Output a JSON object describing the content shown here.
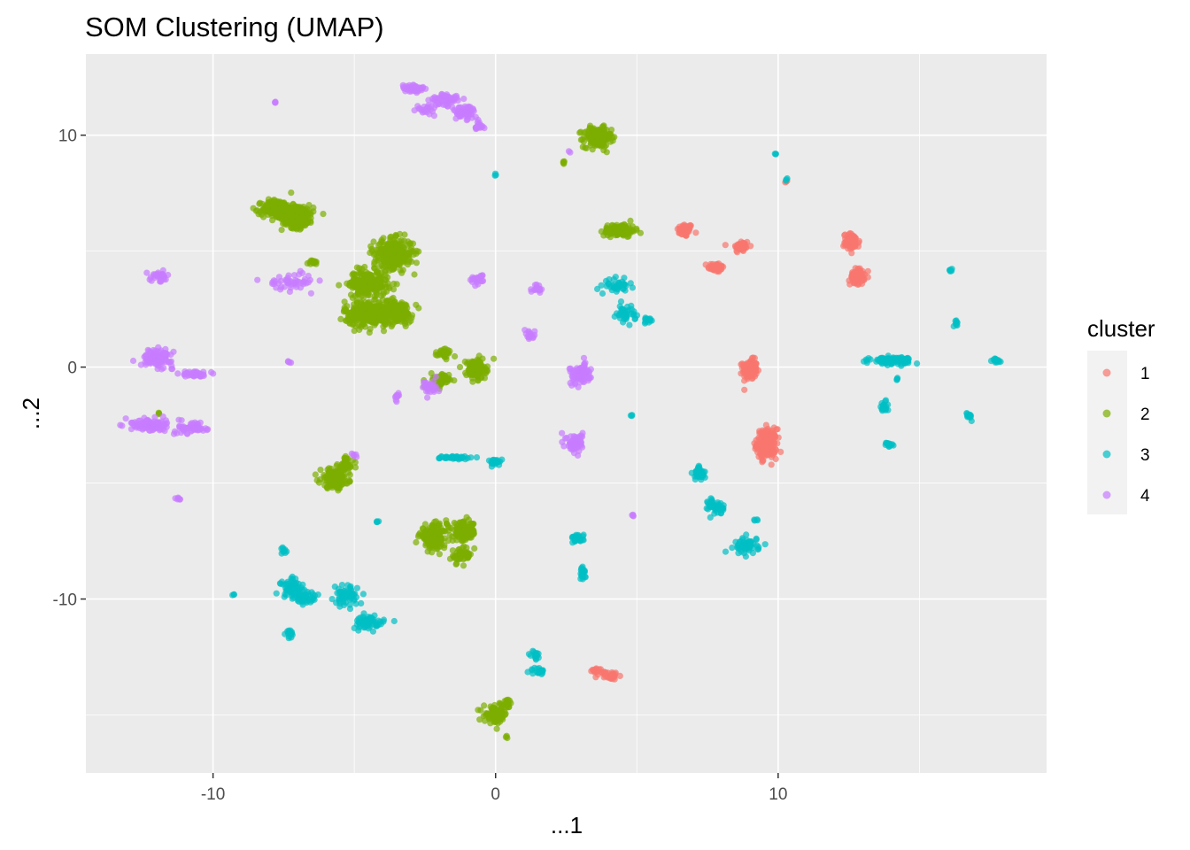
{
  "chart_data": {
    "type": "scatter",
    "title": "SOM Clustering (UMAP)",
    "xlabel": "...1",
    "ylabel": "...2",
    "xlim": [
      -14.5,
      19.5
    ],
    "ylim": [
      -17.5,
      13.5
    ],
    "x_ticks": [
      -10,
      0,
      10
    ],
    "y_ticks": [
      -10,
      0,
      10
    ],
    "grid": true,
    "legend_position": "right",
    "legend_title": "cluster",
    "series": [
      {
        "name": "1",
        "color": "#F8766D",
        "clusters": [
          {
            "x": 6.7,
            "y": 5.9,
            "sx": 0.2,
            "sy": 0.2,
            "n": 50
          },
          {
            "x": 7.8,
            "y": 4.3,
            "sx": 0.2,
            "sy": 0.15,
            "n": 45
          },
          {
            "x": 8.7,
            "y": 5.2,
            "sx": 0.2,
            "sy": 0.2,
            "n": 45
          },
          {
            "x": 9.0,
            "y": -0.1,
            "sx": 0.18,
            "sy": 0.3,
            "n": 120
          },
          {
            "x": 9.6,
            "y": -3.3,
            "sx": 0.25,
            "sy": 0.45,
            "n": 200
          },
          {
            "x": 12.6,
            "y": 5.4,
            "sx": 0.2,
            "sy": 0.25,
            "n": 80
          },
          {
            "x": 12.8,
            "y": 3.9,
            "sx": 0.18,
            "sy": 0.25,
            "n": 70
          },
          {
            "x": 3.6,
            "y": -13.1,
            "sx": 0.15,
            "sy": 0.1,
            "n": 20
          },
          {
            "x": 4.1,
            "y": -13.3,
            "sx": 0.15,
            "sy": 0.12,
            "n": 30
          },
          {
            "x": 10.3,
            "y": 8.0,
            "sx": 0.05,
            "sy": 0.05,
            "n": 3
          }
        ]
      },
      {
        "name": "2",
        "color": "#7CAE00",
        "clusters": [
          {
            "x": 3.6,
            "y": 9.9,
            "sx": 0.35,
            "sy": 0.3,
            "n": 200
          },
          {
            "x": 2.4,
            "y": 8.8,
            "sx": 0.05,
            "sy": 0.05,
            "n": 5
          },
          {
            "x": -7.7,
            "y": 6.8,
            "sx": 0.4,
            "sy": 0.3,
            "n": 180
          },
          {
            "x": -7.0,
            "y": 6.5,
            "sx": 0.4,
            "sy": 0.35,
            "n": 200
          },
          {
            "x": -3.6,
            "y": 4.9,
            "sx": 0.5,
            "sy": 0.45,
            "n": 280
          },
          {
            "x": -4.5,
            "y": 3.6,
            "sx": 0.5,
            "sy": 0.4,
            "n": 220
          },
          {
            "x": -4.5,
            "y": 2.3,
            "sx": 0.6,
            "sy": 0.4,
            "n": 280
          },
          {
            "x": -3.5,
            "y": 2.4,
            "sx": 0.4,
            "sy": 0.35,
            "n": 150
          },
          {
            "x": 4.4,
            "y": 5.9,
            "sx": 0.4,
            "sy": 0.2,
            "n": 120
          },
          {
            "x": -0.7,
            "y": -0.1,
            "sx": 0.25,
            "sy": 0.3,
            "n": 130
          },
          {
            "x": -1.8,
            "y": 0.6,
            "sx": 0.2,
            "sy": 0.15,
            "n": 30
          },
          {
            "x": -2.0,
            "y": -0.6,
            "sx": 0.25,
            "sy": 0.2,
            "n": 70
          },
          {
            "x": -5.7,
            "y": -4.8,
            "sx": 0.35,
            "sy": 0.3,
            "n": 150
          },
          {
            "x": -5.3,
            "y": -4.2,
            "sx": 0.2,
            "sy": 0.25,
            "n": 40
          },
          {
            "x": -2.2,
            "y": -7.3,
            "sx": 0.35,
            "sy": 0.35,
            "n": 160
          },
          {
            "x": -1.1,
            "y": -7.1,
            "sx": 0.3,
            "sy": 0.3,
            "n": 130
          },
          {
            "x": -1.2,
            "y": -8.1,
            "sx": 0.25,
            "sy": 0.25,
            "n": 50
          },
          {
            "x": 0.0,
            "y": -15.0,
            "sx": 0.3,
            "sy": 0.25,
            "n": 80
          },
          {
            "x": 0.4,
            "y": -14.5,
            "sx": 0.15,
            "sy": 0.15,
            "n": 20
          },
          {
            "x": 0.4,
            "y": -15.9,
            "sx": 0.05,
            "sy": 0.05,
            "n": 3
          },
          {
            "x": -6.5,
            "y": 4.5,
            "sx": 0.15,
            "sy": 0.1,
            "n": 15
          },
          {
            "x": -11.9,
            "y": -2.0,
            "sx": 0.05,
            "sy": 0.05,
            "n": 3
          }
        ]
      },
      {
        "name": "3",
        "color": "#00BFC4",
        "clusters": [
          {
            "x": 0.0,
            "y": 8.3,
            "sx": 0.03,
            "sy": 0.03,
            "n": 3
          },
          {
            "x": 9.9,
            "y": 9.2,
            "sx": 0.03,
            "sy": 0.03,
            "n": 3
          },
          {
            "x": 10.3,
            "y": 8.1,
            "sx": 0.05,
            "sy": 0.05,
            "n": 3
          },
          {
            "x": 4.3,
            "y": 3.5,
            "sx": 0.3,
            "sy": 0.2,
            "n": 40
          },
          {
            "x": 4.6,
            "y": 2.3,
            "sx": 0.25,
            "sy": 0.25,
            "n": 40
          },
          {
            "x": 5.4,
            "y": 2.0,
            "sx": 0.1,
            "sy": 0.1,
            "n": 15
          },
          {
            "x": 14.0,
            "y": 0.3,
            "sx": 0.5,
            "sy": 0.1,
            "n": 120
          },
          {
            "x": 16.1,
            "y": 4.2,
            "sx": 0.05,
            "sy": 0.05,
            "n": 6
          },
          {
            "x": 16.3,
            "y": 1.9,
            "sx": 0.05,
            "sy": 0.08,
            "n": 8
          },
          {
            "x": 17.7,
            "y": 0.3,
            "sx": 0.12,
            "sy": 0.08,
            "n": 15
          },
          {
            "x": 14.2,
            "y": -0.5,
            "sx": 0.05,
            "sy": 0.05,
            "n": 4
          },
          {
            "x": 13.7,
            "y": -1.7,
            "sx": 0.15,
            "sy": 0.2,
            "n": 20
          },
          {
            "x": 16.8,
            "y": -2.1,
            "sx": 0.1,
            "sy": 0.1,
            "n": 12
          },
          {
            "x": 13.9,
            "y": -3.3,
            "sx": 0.1,
            "sy": 0.1,
            "n": 15
          },
          {
            "x": 4.8,
            "y": -2.1,
            "sx": 0.03,
            "sy": 0.03,
            "n": 3
          },
          {
            "x": -1.4,
            "y": -3.9,
            "sx": 0.4,
            "sy": 0.05,
            "n": 40
          },
          {
            "x": 0.0,
            "y": -4.1,
            "sx": 0.15,
            "sy": 0.1,
            "n": 25
          },
          {
            "x": 7.2,
            "y": -4.6,
            "sx": 0.15,
            "sy": 0.2,
            "n": 40
          },
          {
            "x": 7.8,
            "y": -6.0,
            "sx": 0.2,
            "sy": 0.25,
            "n": 50
          },
          {
            "x": 9.2,
            "y": -6.6,
            "sx": 0.05,
            "sy": 0.05,
            "n": 4
          },
          {
            "x": 8.9,
            "y": -7.7,
            "sx": 0.3,
            "sy": 0.25,
            "n": 60
          },
          {
            "x": 2.9,
            "y": -7.4,
            "sx": 0.15,
            "sy": 0.15,
            "n": 25
          },
          {
            "x": 3.1,
            "y": -8.9,
            "sx": 0.1,
            "sy": 0.2,
            "n": 20
          },
          {
            "x": -4.2,
            "y": -6.7,
            "sx": 0.05,
            "sy": 0.05,
            "n": 4
          },
          {
            "x": -7.5,
            "y": -7.9,
            "sx": 0.1,
            "sy": 0.1,
            "n": 10
          },
          {
            "x": -7.2,
            "y": -9.5,
            "sx": 0.3,
            "sy": 0.3,
            "n": 60
          },
          {
            "x": -6.7,
            "y": -10.0,
            "sx": 0.3,
            "sy": 0.2,
            "n": 40
          },
          {
            "x": -7.3,
            "y": -11.5,
            "sx": 0.1,
            "sy": 0.15,
            "n": 15
          },
          {
            "x": -9.3,
            "y": -9.8,
            "sx": 0.03,
            "sy": 0.03,
            "n": 3
          },
          {
            "x": -5.3,
            "y": -9.9,
            "sx": 0.3,
            "sy": 0.3,
            "n": 60
          },
          {
            "x": -4.5,
            "y": -11.0,
            "sx": 0.4,
            "sy": 0.2,
            "n": 70
          },
          {
            "x": 1.4,
            "y": -12.4,
            "sx": 0.1,
            "sy": 0.15,
            "n": 15
          },
          {
            "x": 1.5,
            "y": -13.1,
            "sx": 0.2,
            "sy": 0.1,
            "n": 20
          }
        ]
      },
      {
        "name": "4",
        "color": "#C77CFF",
        "clusters": [
          {
            "x": -2.9,
            "y": 12.0,
            "sx": 0.3,
            "sy": 0.15,
            "n": 50
          },
          {
            "x": -1.8,
            "y": 11.5,
            "sx": 0.4,
            "sy": 0.2,
            "n": 60
          },
          {
            "x": -1.1,
            "y": 11.0,
            "sx": 0.3,
            "sy": 0.2,
            "n": 60
          },
          {
            "x": -2.5,
            "y": 11.1,
            "sx": 0.2,
            "sy": 0.15,
            "n": 20
          },
          {
            "x": -0.6,
            "y": 10.4,
            "sx": 0.15,
            "sy": 0.12,
            "n": 20
          },
          {
            "x": -7.8,
            "y": 11.4,
            "sx": 0.03,
            "sy": 0.03,
            "n": 3
          },
          {
            "x": 2.6,
            "y": 9.3,
            "sx": 0.03,
            "sy": 0.03,
            "n": 2
          },
          {
            "x": -11.9,
            "y": 3.9,
            "sx": 0.25,
            "sy": 0.15,
            "n": 30
          },
          {
            "x": -7.2,
            "y": 3.7,
            "sx": 0.6,
            "sy": 0.25,
            "n": 50
          },
          {
            "x": -0.6,
            "y": 3.8,
            "sx": 0.2,
            "sy": 0.15,
            "n": 25
          },
          {
            "x": 1.5,
            "y": 3.4,
            "sx": 0.15,
            "sy": 0.15,
            "n": 20
          },
          {
            "x": -12.0,
            "y": 0.4,
            "sx": 0.4,
            "sy": 0.25,
            "n": 100
          },
          {
            "x": -10.6,
            "y": -0.3,
            "sx": 0.35,
            "sy": 0.1,
            "n": 40
          },
          {
            "x": -7.3,
            "y": 0.2,
            "sx": 0.05,
            "sy": 0.05,
            "n": 4
          },
          {
            "x": 3.0,
            "y": -0.3,
            "sx": 0.25,
            "sy": 0.3,
            "n": 110
          },
          {
            "x": 1.2,
            "y": 1.4,
            "sx": 0.15,
            "sy": 0.15,
            "n": 20
          },
          {
            "x": -2.3,
            "y": -0.9,
            "sx": 0.2,
            "sy": 0.25,
            "n": 30
          },
          {
            "x": -3.5,
            "y": -1.2,
            "sx": 0.05,
            "sy": 0.15,
            "n": 10
          },
          {
            "x": -12.3,
            "y": -2.5,
            "sx": 0.45,
            "sy": 0.2,
            "n": 100
          },
          {
            "x": -10.7,
            "y": -2.6,
            "sx": 0.4,
            "sy": 0.2,
            "n": 60
          },
          {
            "x": 2.8,
            "y": -3.3,
            "sx": 0.2,
            "sy": 0.3,
            "n": 70
          },
          {
            "x": -11.2,
            "y": -5.7,
            "sx": 0.08,
            "sy": 0.08,
            "n": 6
          },
          {
            "x": 4.9,
            "y": -6.4,
            "sx": 0.05,
            "sy": 0.05,
            "n": 4
          },
          {
            "x": -5.0,
            "y": -3.8,
            "sx": 0.08,
            "sy": 0.08,
            "n": 5
          }
        ]
      }
    ]
  }
}
